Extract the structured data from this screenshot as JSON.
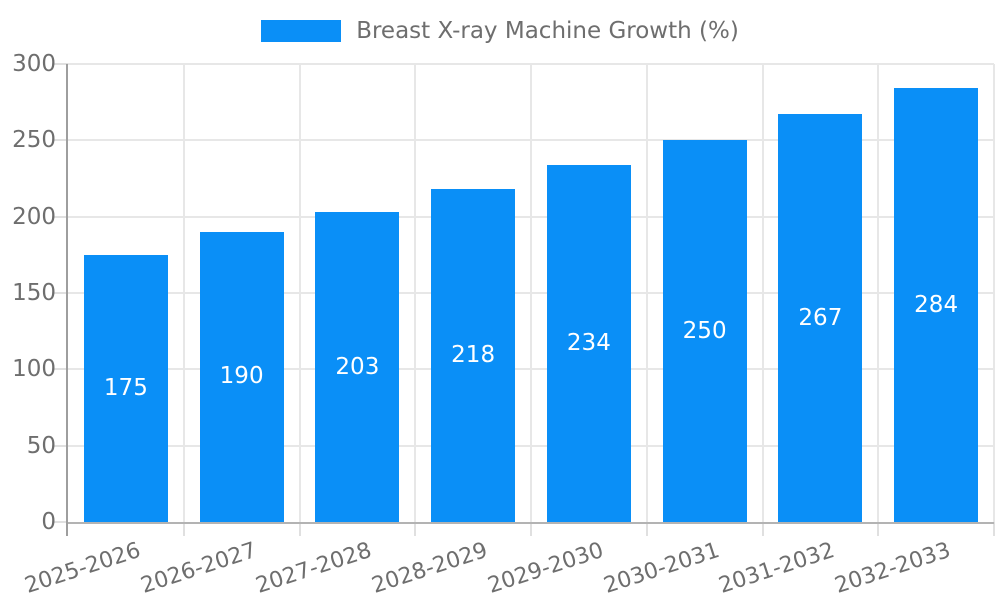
{
  "chart": {
    "legend_label": "Breast X-ray Machine Growth (%)",
    "colors": {
      "bar": "#0a8ff7",
      "grid": "#e7e7e7",
      "tick": "#e0e0e0",
      "y_axis": "#9e9e9e",
      "x_axis": "#b3b3b3",
      "text": "#6e6e6e",
      "value_label": "#ffffff",
      "background": "#ffffff"
    }
  },
  "chart_data": {
    "type": "bar",
    "title": "Breast X-ray Machine Growth (%)",
    "legend": [
      "Breast X-ray Machine Growth (%)"
    ],
    "legend_position": "top-center",
    "categories": [
      "2025-2026",
      "2026-2027",
      "2027-2028",
      "2028-2029",
      "2029-2030",
      "2030-2031",
      "2031-2032",
      "2032-2033"
    ],
    "values": [
      175,
      190,
      203,
      218,
      234,
      250,
      267,
      284
    ],
    "bar_value_labels": [
      "175",
      "190",
      "203",
      "218",
      "234",
      "250",
      "267",
      "284"
    ],
    "xlabel": "",
    "ylabel": "",
    "ylim": [
      0,
      300
    ],
    "yticks": [
      0,
      50,
      100,
      150,
      200,
      250,
      300
    ],
    "grid": true,
    "x_tick_label_rotation_deg": -18
  }
}
